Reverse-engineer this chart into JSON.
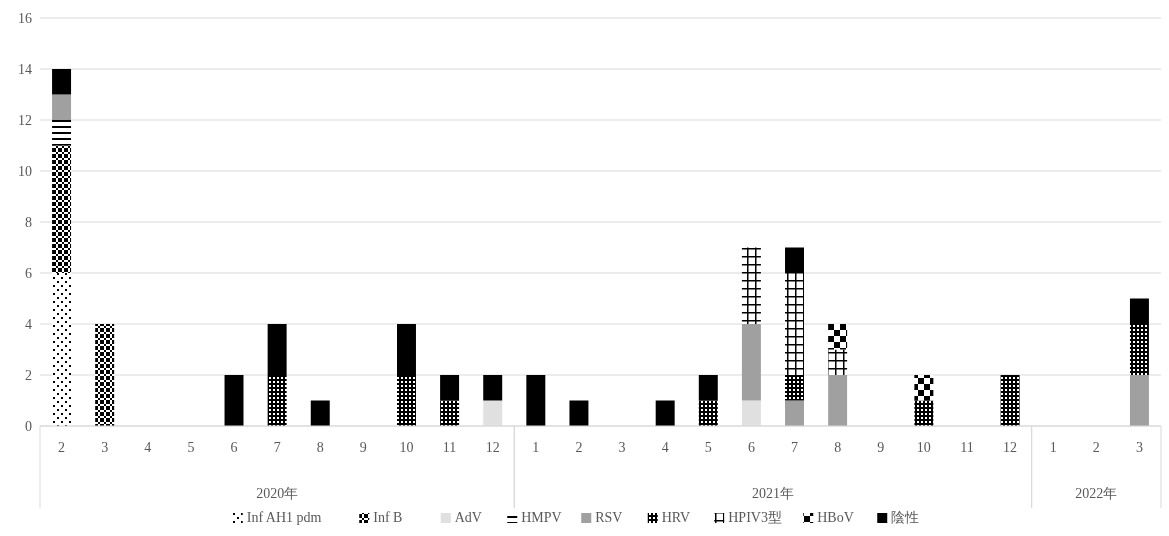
{
  "chart_data": {
    "type": "bar",
    "stacked": true,
    "categories": [
      "2",
      "3",
      "4",
      "5",
      "6",
      "7",
      "8",
      "9",
      "10",
      "11",
      "12",
      "1",
      "2",
      "3",
      "4",
      "5",
      "6",
      "7",
      "8",
      "9",
      "10",
      "11",
      "12",
      "1",
      "2",
      "3"
    ],
    "annotations": [
      "2020年",
      "2021年",
      "2022年"
    ],
    "ylim": [
      0,
      16
    ],
    "yticks": [
      0,
      2,
      4,
      6,
      8,
      10,
      12,
      14,
      16
    ],
    "grid": "y",
    "legend": "bottom",
    "series": [
      {
        "name": "Inf AH1 pdm",
        "color": "#000000",
        "values": [
          6,
          0,
          0,
          0,
          0,
          0,
          0,
          0,
          0,
          0,
          0,
          0,
          0,
          0,
          0,
          0,
          0,
          0,
          0,
          0,
          0,
          0,
          0,
          0,
          0,
          0
        ]
      },
      {
        "name": "Inf B",
        "color": "#000000",
        "values": [
          5,
          4,
          0,
          0,
          0,
          0,
          0,
          0,
          0,
          0,
          0,
          0,
          0,
          0,
          0,
          0,
          0,
          0,
          0,
          0,
          0,
          0,
          0,
          0,
          0,
          0
        ]
      },
      {
        "name": "AdV",
        "color": "#e0e0e0",
        "values": [
          0,
          0,
          0,
          0,
          0,
          0,
          0,
          0,
          0,
          0,
          1,
          0,
          0,
          0,
          0,
          0,
          1,
          0,
          0,
          0,
          0,
          0,
          0,
          0,
          0,
          0
        ]
      },
      {
        "name": "HMPV",
        "color": "#000000",
        "values": [
          1,
          0,
          0,
          0,
          0,
          0,
          0,
          0,
          0,
          0,
          0,
          0,
          0,
          0,
          0,
          0,
          0,
          0,
          0,
          0,
          0,
          0,
          0,
          0,
          0,
          0
        ]
      },
      {
        "name": "RSV",
        "color": "#a0a0a0",
        "values": [
          1,
          0,
          0,
          0,
          0,
          0,
          0,
          0,
          0,
          0,
          0,
          0,
          0,
          0,
          0,
          0,
          3,
          1,
          2,
          0,
          0,
          0,
          0,
          0,
          0,
          2
        ]
      },
      {
        "name": "HRV",
        "color": "#000000",
        "values": [
          0,
          0,
          0,
          0,
          0,
          2,
          0,
          0,
          2,
          1,
          0,
          0,
          0,
          0,
          0,
          1,
          0,
          1,
          0,
          0,
          1,
          0,
          2,
          0,
          0,
          2
        ]
      },
      {
        "name": "HPIV3型",
        "color": "#000000",
        "values": [
          0,
          0,
          0,
          0,
          0,
          0,
          0,
          0,
          0,
          0,
          0,
          0,
          0,
          0,
          0,
          0,
          3,
          4,
          1,
          0,
          0,
          0,
          0,
          0,
          0,
          0
        ]
      },
      {
        "name": "HBoV",
        "color": "#000000",
        "values": [
          0,
          0,
          0,
          0,
          0,
          0,
          0,
          0,
          0,
          0,
          0,
          0,
          0,
          0,
          0,
          0,
          0,
          0,
          1,
          0,
          1,
          0,
          0,
          0,
          0,
          0
        ]
      },
      {
        "name": "陰性",
        "color": "#000000",
        "values": [
          1,
          0,
          0,
          0,
          2,
          2,
          1,
          0,
          2,
          1,
          1,
          2,
          1,
          0,
          1,
          1,
          0,
          1,
          0,
          0,
          0,
          0,
          0,
          0,
          0,
          1
        ]
      }
    ]
  }
}
